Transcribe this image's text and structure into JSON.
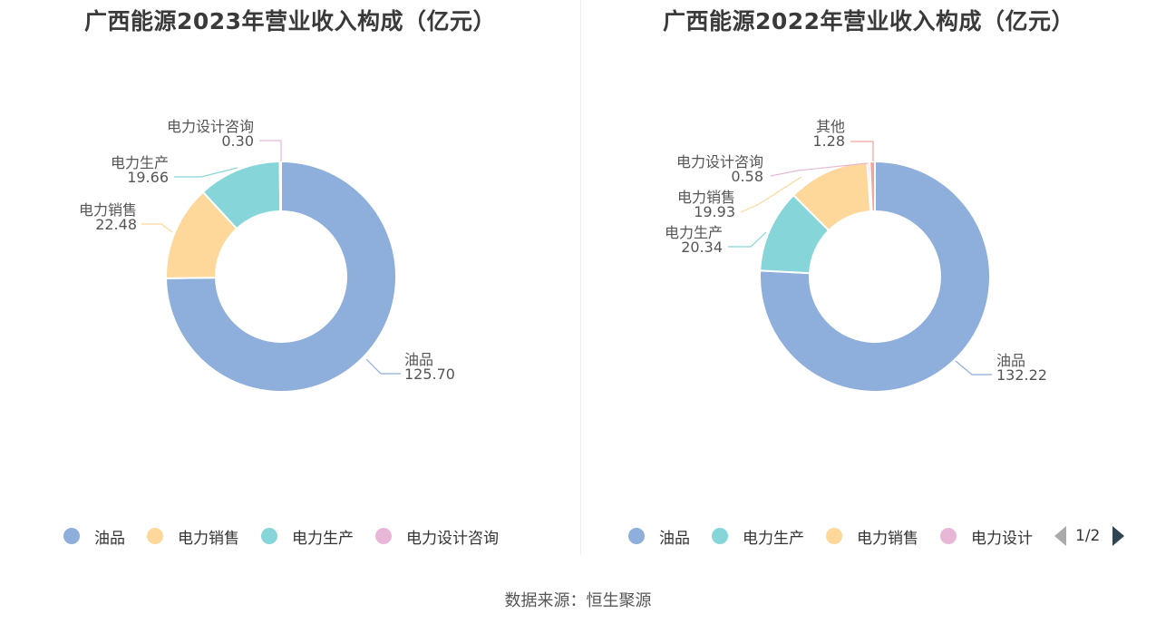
{
  "source_label": "数据来源：恒生聚源",
  "chart_data": [
    {
      "type": "pie",
      "title": "广西能源2023年营业收入构成（亿元）",
      "slices": [
        {
          "name": "油品",
          "value": 125.7,
          "value_label": "125.70",
          "color": "#8eaedb"
        },
        {
          "name": "电力销售",
          "value": 22.48,
          "value_label": "22.48",
          "color": "#fdd89a"
        },
        {
          "name": "电力生产",
          "value": 19.66,
          "value_label": "19.66",
          "color": "#86d5d8"
        },
        {
          "name": "电力设计咨询",
          "value": 0.3,
          "value_label": "0.30",
          "color": "#e8b7d8"
        }
      ],
      "legend": [
        {
          "label": "油品",
          "color": "#8eaedb"
        },
        {
          "label": "电力销售",
          "color": "#fdd89a"
        },
        {
          "label": "电力生产",
          "color": "#86d5d8"
        },
        {
          "label": "电力设计咨询",
          "color": "#e8b7d8"
        }
      ]
    },
    {
      "type": "pie",
      "title": "广西能源2022年营业收入构成（亿元）",
      "slices": [
        {
          "name": "油品",
          "value": 132.22,
          "value_label": "132.22",
          "color": "#8eaedb"
        },
        {
          "name": "电力生产",
          "value": 20.34,
          "value_label": "20.34",
          "color": "#86d5d8"
        },
        {
          "name": "电力销售",
          "value": 19.93,
          "value_label": "19.93",
          "color": "#fdd89a"
        },
        {
          "name": "电力设计咨询",
          "value": 0.58,
          "value_label": "0.58",
          "color": "#e8b7d8"
        },
        {
          "name": "其他",
          "value": 1.28,
          "value_label": "1.28",
          "color": "#f0a49c"
        }
      ],
      "legend": [
        {
          "label": "油品",
          "color": "#8eaedb"
        },
        {
          "label": "电力生产",
          "color": "#86d5d8"
        },
        {
          "label": "电力销售",
          "color": "#fdd89a"
        },
        {
          "label": "电力设计",
          "color": "#e8b7d8"
        }
      ],
      "legend_pager": "1/2"
    }
  ]
}
